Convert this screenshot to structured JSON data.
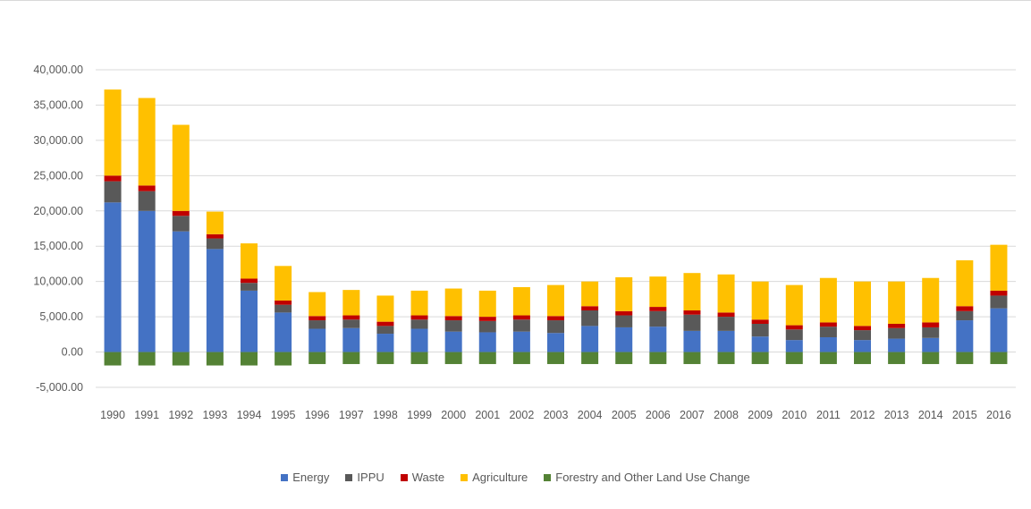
{
  "chart_data": {
    "type": "bar",
    "stacked": true,
    "title": "",
    "xlabel": "",
    "ylabel": "",
    "ylim": [
      -5000,
      40000
    ],
    "yticks": [
      40000,
      35000,
      30000,
      25000,
      20000,
      15000,
      10000,
      5000,
      0,
      -5000
    ],
    "ytick_labels": [
      "40,000.00",
      "35,000.00",
      "30,000.00",
      "25,000.00",
      "20,000.00",
      "15,000.00",
      "10,000.00",
      "5,000.00",
      "0.00",
      "-5,000.00"
    ],
    "grid": true,
    "legend_position": "bottom",
    "categories": [
      "1990",
      "1991",
      "1992",
      "1993",
      "1994",
      "1995",
      "1996",
      "1997",
      "1998",
      "1999",
      "2000",
      "2001",
      "2002",
      "2003",
      "2004",
      "2005",
      "2006",
      "2007",
      "2008",
      "2009",
      "2010",
      "2011",
      "2012",
      "2013",
      "2014",
      "2015",
      "2016"
    ],
    "series": [
      {
        "name": "Energy",
        "color": "#4472c4",
        "values": [
          21200,
          20000,
          17100,
          14600,
          8700,
          5600,
          3300,
          3400,
          2600,
          3300,
          2900,
          2800,
          2900,
          2700,
          3700,
          3500,
          3600,
          3000,
          3000,
          2200,
          1700,
          2100,
          1700,
          1900,
          2000,
          4500,
          6200
        ]
      },
      {
        "name": "IPPU",
        "color": "#595959",
        "values": [
          3000,
          2800,
          2200,
          1500,
          1100,
          1100,
          1200,
          1200,
          1100,
          1300,
          1600,
          1600,
          1700,
          1800,
          2200,
          1700,
          2200,
          2300,
          2000,
          1800,
          1500,
          1500,
          1400,
          1500,
          1500,
          1300,
          1800
        ]
      },
      {
        "name": "Waste",
        "color": "#c00000",
        "values": [
          800,
          800,
          700,
          600,
          600,
          600,
          600,
          600,
          600,
          600,
          600,
          600,
          600,
          600,
          600,
          600,
          600,
          600,
          600,
          600,
          600,
          600,
          600,
          600,
          700,
          700,
          700
        ]
      },
      {
        "name": "Agriculture",
        "color": "#ffc000",
        "values": [
          12200,
          12400,
          12200,
          3200,
          5000,
          4900,
          3400,
          3600,
          3700,
          3500,
          3900,
          3700,
          4000,
          4400,
          3500,
          4800,
          4300,
          5300,
          5400,
          5400,
          5700,
          6300,
          6300,
          6000,
          6300,
          6500,
          6500
        ]
      },
      {
        "name": "Forestry and Other Land Use Change",
        "color": "#548235",
        "values": [
          -1900,
          -1900,
          -1900,
          -1900,
          -1900,
          -1900,
          -1700,
          -1700,
          -1700,
          -1700,
          -1700,
          -1700,
          -1700,
          -1700,
          -1700,
          -1700,
          -1700,
          -1700,
          -1700,
          -1700,
          -1700,
          -1700,
          -1700,
          -1700,
          -1700,
          -1700,
          -1700
        ]
      }
    ]
  }
}
